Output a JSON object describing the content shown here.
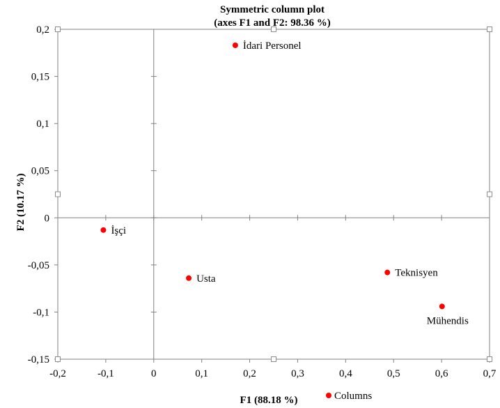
{
  "chart_data": {
    "type": "scatter",
    "title": "Symmetric column plot",
    "subtitle": "(axes F1 and F2: 98.36 %)",
    "xlabel": "F1 (88.18 %)",
    "ylabel": "F2 (10.17 %)",
    "xlim": [
      -0.2,
      0.7
    ],
    "ylim": [
      -0.15,
      0.2
    ],
    "x_ticks": [
      "-0,2",
      "-0,1",
      "0",
      "0,1",
      "0,2",
      "0,3",
      "0,4",
      "0,5",
      "0,6",
      "0,7"
    ],
    "y_ticks": [
      "0,2",
      "0,15",
      "0,1",
      "0,05",
      "0",
      "-0,05",
      "-0,1",
      "-0,15"
    ],
    "grid": false,
    "legend_position": "bottom",
    "series": [
      {
        "name": "Columns",
        "color": "#ff0000",
        "points": [
          {
            "label": "İdari Personel",
            "x": 0.17,
            "y": 0.183
          },
          {
            "label": "İşçi",
            "x": -0.105,
            "y": -0.013
          },
          {
            "label": "Usta",
            "x": 0.073,
            "y": -0.064
          },
          {
            "label": "Teknisyen",
            "x": 0.487,
            "y": -0.058
          },
          {
            "label": "Mühendis",
            "x": 0.601,
            "y": -0.094
          }
        ]
      }
    ]
  }
}
